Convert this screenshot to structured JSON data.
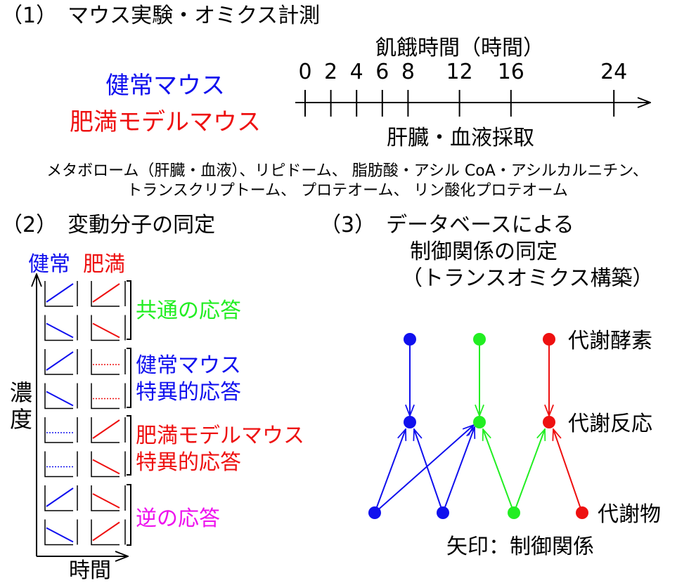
{
  "colors": {
    "blue": "#1010ee",
    "red": "#ee1010",
    "green": "#22ee22",
    "magenta": "#ee10ee",
    "black": "#000000"
  },
  "section1": {
    "heading": "（1）　マウス実験・オミクス計測",
    "timeline_title": "飢餓時間（時間）",
    "time_ticks": [
      "0",
      "2",
      "4",
      "6",
      "8",
      "12",
      "16",
      "24"
    ],
    "sampling_label": "肝臓・血液採取",
    "healthy_mouse": "健常マウス",
    "obese_mouse": "肥満モデルマウス",
    "omics_line1": "メタボローム（肝臓・血液）、リピドーム、 脂肪酸・アシル CoA・アシルカルニチン、",
    "omics_line2": "トランスクリプトーム、 プロテオーム、 リン酸化プロテオーム"
  },
  "section2": {
    "heading": "（2）　変動分子の同定",
    "col_healthy": "健常",
    "col_obese": "肥満",
    "y_axis": "濃度",
    "x_axis": "時間",
    "categories": [
      {
        "label1": "共通の応答",
        "label2": "",
        "color": "green"
      },
      {
        "label1": "健常マウス",
        "label2": "特異的応答",
        "color": "blue"
      },
      {
        "label1": "肥満モデルマウス",
        "label2": "特異的応答",
        "color": "red"
      },
      {
        "label1": "逆の応答",
        "label2": "",
        "color": "magenta"
      }
    ],
    "rows": [
      {
        "healthy": "up",
        "obese": "up"
      },
      {
        "healthy": "down",
        "obese": "down"
      },
      {
        "healthy": "up",
        "obese": "flat"
      },
      {
        "healthy": "down",
        "obese": "flat"
      },
      {
        "healthy": "flat",
        "obese": "up"
      },
      {
        "healthy": "flat",
        "obese": "down"
      },
      {
        "healthy": "up",
        "obese": "down"
      },
      {
        "healthy": "down",
        "obese": "up"
      }
    ]
  },
  "section3": {
    "heading_line1": "（3）　データベースによる",
    "heading_line2": "制御関係の同定",
    "heading_line3": "（トランスオミクス構築）",
    "layer_enzyme": "代謝酵素",
    "layer_reaction": "代謝反応",
    "layer_metabolite": "代謝物",
    "arrow_caption": "矢印：制御関係"
  }
}
